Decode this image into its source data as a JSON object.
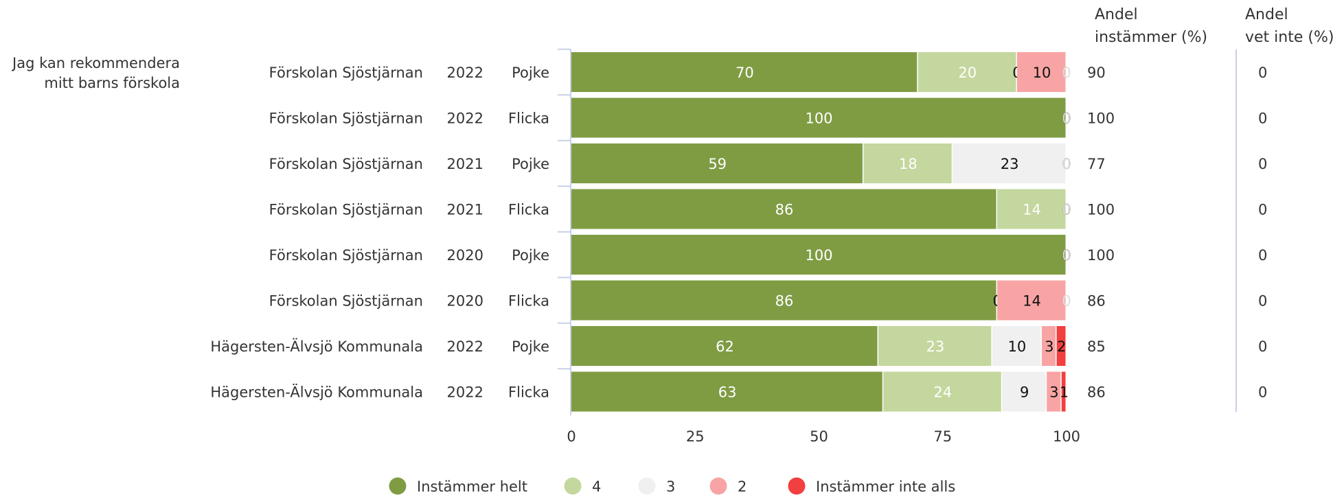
{
  "question": [
    "Jag kan rekommendera",
    "mitt barns förskola"
  ],
  "col_andel_instammer": [
    "Andel",
    "instämmer (%)"
  ],
  "col_andel_vet_inte": [
    "Andel",
    "vet inte (%)"
  ],
  "chart_data": {
    "type": "bar",
    "orientation": "horizontal",
    "stacked": true,
    "xlim": [
      0,
      100
    ],
    "xticks": [
      "0",
      "25",
      "50",
      "75",
      "100"
    ],
    "grid": false,
    "legend_position": "bottom",
    "series": [
      {
        "name": "Instämmer helt",
        "color": "#7f9c43"
      },
      {
        "name": "4",
        "color": "#c4d79e"
      },
      {
        "name": "3",
        "color": "#f0f0f0"
      },
      {
        "name": "2",
        "color": "#f8a4a4"
      },
      {
        "name": "Instämmer inte alls",
        "color": "#f23f3f"
      }
    ],
    "rows": [
      {
        "unit": "Förskolan Sjöstjärnan",
        "year": "2022",
        "gender": "Pojke",
        "values": [
          70,
          20,
          0,
          10,
          0
        ],
        "andel": "90",
        "vet_inte": "0"
      },
      {
        "unit": "Förskolan Sjöstjärnan",
        "year": "2022",
        "gender": "Flicka",
        "values": [
          100,
          0,
          0,
          0,
          0
        ],
        "andel": "100",
        "vet_inte": "0"
      },
      {
        "unit": "Förskolan Sjöstjärnan",
        "year": "2021",
        "gender": "Pojke",
        "values": [
          59,
          18,
          23,
          0,
          0
        ],
        "andel": "77",
        "vet_inte": "0"
      },
      {
        "unit": "Förskolan Sjöstjärnan",
        "year": "2021",
        "gender": "Flicka",
        "values": [
          86,
          14,
          0,
          0,
          0
        ],
        "andel": "100",
        "vet_inte": "0"
      },
      {
        "unit": "Förskolan Sjöstjärnan",
        "year": "2020",
        "gender": "Pojke",
        "values": [
          100,
          0,
          0,
          0,
          0
        ],
        "andel": "100",
        "vet_inte": "0"
      },
      {
        "unit": "Förskolan Sjöstjärnan",
        "year": "2020",
        "gender": "Flicka",
        "values": [
          86,
          0,
          0,
          14,
          0
        ],
        "andel": "86",
        "vet_inte": "0"
      },
      {
        "unit": "Hägersten-Älvsjö Kommunala",
        "year": "2022",
        "gender": "Pojke",
        "values": [
          62,
          23,
          10,
          3,
          2
        ],
        "andel": "85",
        "vet_inte": "0"
      },
      {
        "unit": "Hägersten-Älvsjö Kommunala",
        "year": "2022",
        "gender": "Flicka",
        "values": [
          63,
          24,
          9,
          3,
          1
        ],
        "andel": "86",
        "vet_inte": "0"
      }
    ]
  }
}
